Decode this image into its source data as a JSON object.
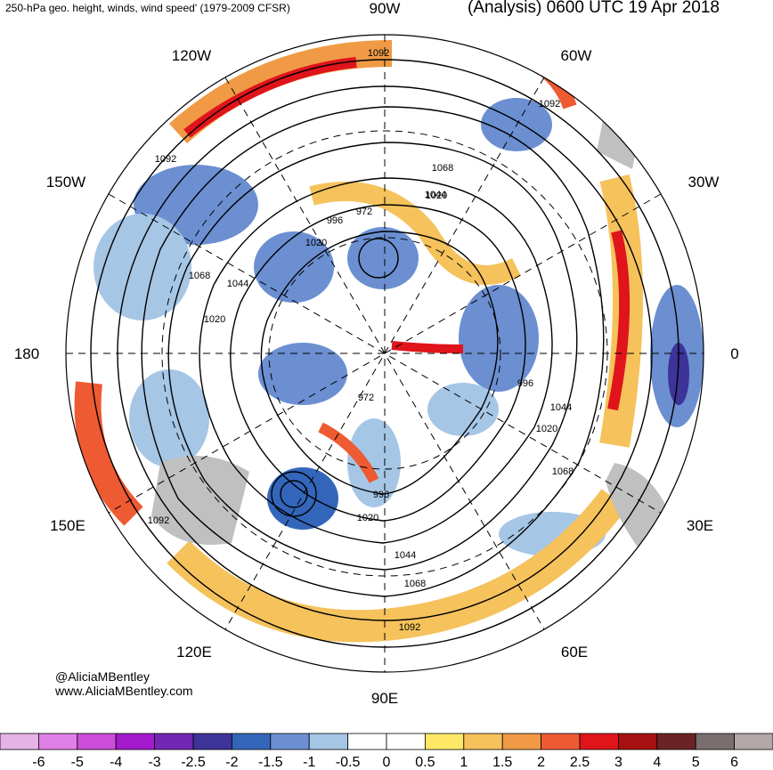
{
  "header": {
    "left_title": "250-hPa geo. height, winds, wind speed' (1979-2009 CFSR)",
    "right_title": "(Analysis) 0600 UTC 19 Apr 2018"
  },
  "longitude_labels": [
    "90W",
    "60W",
    "30W",
    "0",
    "30E",
    "60E",
    "90E",
    "120E",
    "150E",
    "180",
    "150W",
    "120W"
  ],
  "contour_labels": [
    "1092",
    "1092",
    "1092",
    "1092",
    "1092",
    "1068",
    "1068",
    "1068",
    "1068",
    "1044",
    "1044",
    "1044",
    "1044",
    "1020",
    "1020",
    "1020",
    "1020",
    "1020",
    "996",
    "996",
    "996",
    "972",
    "972"
  ],
  "credits": [
    "@AliciaMBentley",
    "www.AliciaMBentley.com"
  ],
  "colorbar": {
    "ticks": [
      "-6",
      "-5",
      "-4",
      "-3",
      "-2.5",
      "-2",
      "-1.5",
      "-1",
      "-0.5",
      "0",
      "0.5",
      "1",
      "1.5",
      "2",
      "2.5",
      "3",
      "4",
      "5",
      "6"
    ],
    "colors": [
      "#e6b3e6",
      "#e080e6",
      "#cc4dd9",
      "#a31acc",
      "#7326b3",
      "#3d3399",
      "#3366bb",
      "#6b8fd1",
      "#a6c6e6",
      "#ffffff",
      "#ffffff",
      "#ffe866",
      "#f5c25c",
      "#f09a45",
      "#ee5a32",
      "#e0141b",
      "#a61010",
      "#6b2323",
      "#7a6e6e",
      "#b3a8a8"
    ]
  }
}
